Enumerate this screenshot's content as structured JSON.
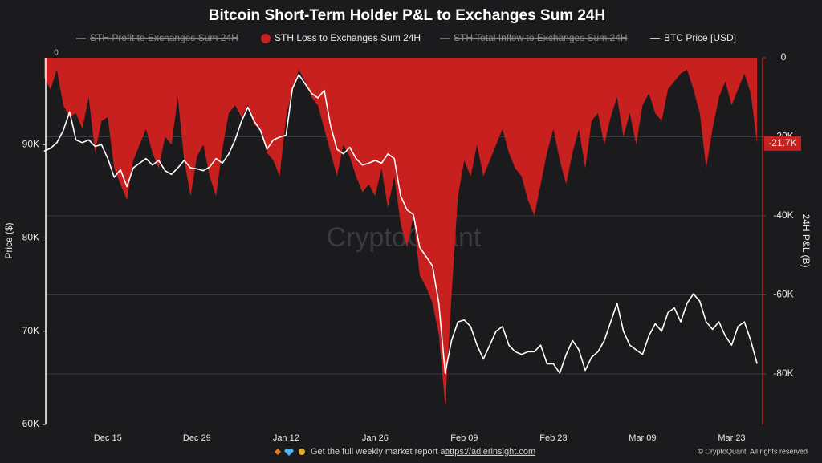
{
  "chart_data": {
    "type": "area-line",
    "title": "Bitcoin Short-Term Holder P&L to Exchanges Sum 24H",
    "ylabel": "Price ($)",
    "y2label": "24H P&L (B)",
    "watermark": "CryptoQuant",
    "annotation": "0",
    "footer": "Get the full weekly market report at",
    "footer_link": "https://adlerinsight.com",
    "copyright": "© CryptoQuant. All rights reserved",
    "categories": [
      null,
      null,
      null,
      null,
      null,
      null,
      null,
      null,
      null,
      null,
      "Dec 15",
      null,
      null,
      null,
      null,
      null,
      null,
      null,
      null,
      null,
      null,
      null,
      null,
      null,
      "Dec 29",
      null,
      null,
      null,
      null,
      null,
      null,
      null,
      null,
      null,
      null,
      null,
      null,
      null,
      "Jan 12",
      null,
      null,
      null,
      null,
      null,
      null,
      null,
      null,
      null,
      null,
      null,
      null,
      null,
      "Jan 26",
      null,
      null,
      null,
      null,
      null,
      null,
      null,
      null,
      null,
      null,
      null,
      null,
      null,
      "Feb 09",
      null,
      null,
      null,
      null,
      null,
      null,
      null,
      null,
      null,
      null,
      null,
      null,
      null,
      "Feb 23",
      null,
      null,
      null,
      null,
      null,
      null,
      null,
      null,
      null,
      null,
      null,
      null,
      null,
      "Mar 09",
      null,
      null,
      null,
      null,
      null,
      null,
      null,
      null,
      null,
      null,
      null,
      null,
      null,
      "Mar 23",
      null,
      null,
      null,
      null,
      null
    ],
    "series": [
      {
        "name": "STH Profit to Exchanges Sum 24H",
        "color": "#8a8a8a",
        "visible": false
      },
      {
        "name": "STH Loss to Exchanges Sum 24H",
        "color": "#c8201e",
        "axis": "y2",
        "kind": "area",
        "values": [
          -5000,
          -8000,
          -3000,
          -12000,
          -15000,
          -14000,
          -18000,
          -10000,
          -24000,
          -16000,
          -15000,
          -28000,
          -32000,
          -36000,
          -26000,
          -22000,
          -18000,
          -24000,
          -28000,
          -20000,
          -22000,
          -10000,
          -26000,
          -35000,
          -25000,
          -22000,
          -30000,
          -35000,
          -23000,
          -14000,
          -12000,
          -15000,
          -12000,
          -17000,
          -18000,
          -24000,
          -26000,
          -30000,
          -15000,
          -8000,
          -3000,
          -6000,
          -10000,
          -12000,
          -18000,
          -24000,
          -30000,
          -22000,
          -25000,
          -30000,
          -34000,
          -32000,
          -35000,
          -28000,
          -38000,
          -30000,
          -42000,
          -48000,
          -40000,
          -55000,
          -58000,
          -62000,
          -70000,
          -88000,
          -60000,
          -35000,
          -26000,
          -30000,
          -22000,
          -30000,
          -26000,
          -22000,
          -18000,
          -24000,
          -28000,
          -30000,
          -36000,
          -40000,
          -32000,
          -24000,
          -18000,
          -26000,
          -32000,
          -24000,
          -18000,
          -28000,
          -16000,
          -14000,
          -22000,
          -15000,
          -10000,
          -20000,
          -14000,
          -22000,
          -12000,
          -9000,
          -14000,
          -16000,
          -8000,
          -6000,
          -4000,
          -3000,
          -8000,
          -14000,
          -28000,
          -18000,
          -10000,
          -6000,
          -12000,
          -8000,
          -4000,
          -9000,
          -21700,
          null
        ],
        "value_labels": [
          null,
          null,
          null,
          null,
          null,
          null,
          null,
          null,
          null,
          null,
          null,
          null,
          null,
          null,
          null,
          null,
          null,
          null,
          null,
          null,
          null,
          null,
          null,
          null,
          null,
          null,
          null,
          null,
          null,
          null,
          null,
          null,
          null,
          null,
          null,
          null,
          null,
          null,
          null,
          null,
          null,
          null,
          null,
          null,
          null,
          null,
          null,
          null,
          null,
          null,
          null,
          null,
          null,
          null,
          null,
          null,
          null,
          null,
          null,
          null,
          null,
          null,
          null,
          null,
          null,
          null,
          null,
          null,
          null,
          null,
          null,
          null,
          null,
          null,
          null,
          null,
          null,
          null,
          null,
          null,
          null,
          null,
          null,
          null,
          null,
          null,
          null,
          null,
          null,
          null,
          null,
          null,
          null,
          null,
          null,
          null,
          null,
          null,
          null,
          null,
          null,
          null,
          null,
          null,
          null,
          null,
          null,
          null,
          null,
          null,
          null,
          null,
          "-21.7K",
          null
        ]
      },
      {
        "name": "STH Total Inflow to Exchanges Sum 24H",
        "color": "#8a8a8a",
        "visible": false
      },
      {
        "name": "BTC Price [USD]",
        "color": "#ffffff",
        "axis": "y",
        "kind": "line",
        "values": [
          89300,
          89600,
          90200,
          91500,
          93500,
          90500,
          90200,
          90500,
          89800,
          90000,
          88500,
          86500,
          87300,
          85500,
          87500,
          88000,
          88500,
          87800,
          88300,
          87200,
          86800,
          87500,
          88300,
          87500,
          87400,
          87200,
          87600,
          88500,
          88000,
          89000,
          90500,
          92500,
          94000,
          92500,
          91500,
          89500,
          90500,
          90800,
          91000,
          96000,
          97500,
          96500,
          95500,
          95000,
          95800,
          92000,
          89500,
          89000,
          89700,
          88500,
          87800,
          88000,
          88300,
          88000,
          89000,
          88500,
          84500,
          83000,
          82500,
          79000,
          78000,
          77000,
          73000,
          65500,
          69000,
          71000,
          71200,
          70500,
          68500,
          67000,
          68500,
          70000,
          70500,
          68500,
          67800,
          67500,
          67800,
          67800,
          68500,
          66500,
          66500,
          65500,
          67500,
          69000,
          68000,
          65800,
          67200,
          67800,
          69000,
          71000,
          73000,
          70000,
          68500,
          68000,
          67500,
          69500,
          70800,
          70000,
          72000,
          72500,
          71000,
          73000,
          74000,
          73200,
          71000,
          70200,
          71000,
          69500,
          68500,
          70500,
          71000,
          69000,
          66500,
          null
        ]
      }
    ],
    "ylim": [
      60000,
      99300
    ],
    "yticks": [
      {
        "value": 60000,
        "label": "60K"
      },
      {
        "value": 70000,
        "label": "70K"
      },
      {
        "value": 80000,
        "label": "80K"
      },
      {
        "value": 90000,
        "label": "90K"
      }
    ],
    "y2lim": [
      -92800,
      0
    ],
    "y2ticks": [
      0,
      {
        "value": -20000,
        "label": "-20K"
      },
      {
        "value": -40000,
        "label": "-40K"
      },
      {
        "value": -60000,
        "label": "-60K"
      },
      {
        "value": -80000,
        "label": "-80K"
      }
    ],
    "grid": true
  }
}
